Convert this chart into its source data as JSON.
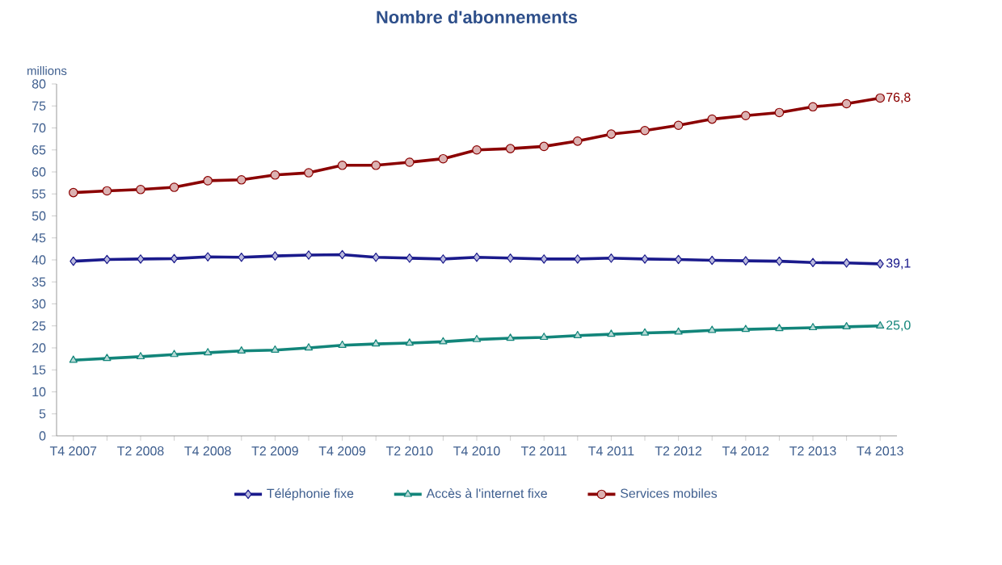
{
  "chart_data": {
    "type": "line",
    "title": "Nombre d'abonnements",
    "ylabel": "millions",
    "categories": [
      "T4 2007",
      null,
      "T2 2008",
      null,
      "T4 2008",
      null,
      "T2 2009",
      null,
      "T4 2009",
      null,
      "T2 2010",
      null,
      "T4 2010",
      null,
      "T2 2011",
      null,
      "T4 2011",
      null,
      "T2 2012",
      null,
      "T4 2012",
      null,
      "T2 2013",
      null,
      "T4 2013"
    ],
    "series": [
      {
        "name": "Téléphonie fixe",
        "color": "#1a1a8c",
        "marker": "diamond",
        "values": [
          39.7,
          40.1,
          40.2,
          40.3,
          40.7,
          40.6,
          40.9,
          41.1,
          41.2,
          40.6,
          40.4,
          40.2,
          40.6,
          40.4,
          40.2,
          40.2,
          40.4,
          40.2,
          40.1,
          39.9,
          39.8,
          39.7,
          39.4,
          39.3,
          39.1
        ],
        "value_labels": [
          null,
          null,
          null,
          null,
          null,
          null,
          null,
          null,
          null,
          null,
          null,
          null,
          null,
          null,
          null,
          null,
          null,
          null,
          null,
          null,
          null,
          null,
          null,
          null,
          "39,1"
        ]
      },
      {
        "name": "Accès à l'internet fixe",
        "color": "#12857a",
        "marker": "triangle",
        "values": [
          17.2,
          17.6,
          18.0,
          18.5,
          18.9,
          19.3,
          19.5,
          20.0,
          20.6,
          20.9,
          21.1,
          21.4,
          21.9,
          22.2,
          22.4,
          22.8,
          23.1,
          23.4,
          23.6,
          24.0,
          24.2,
          24.4,
          24.6,
          24.8,
          25.0
        ],
        "value_labels": [
          null,
          null,
          null,
          null,
          null,
          null,
          null,
          null,
          null,
          null,
          null,
          null,
          null,
          null,
          null,
          null,
          null,
          null,
          null,
          null,
          null,
          null,
          null,
          null,
          "25,0"
        ]
      },
      {
        "name": "Services mobiles",
        "color": "#8b0000",
        "marker": "circle",
        "values": [
          55.3,
          55.7,
          56.0,
          56.5,
          58.0,
          58.2,
          59.3,
          59.8,
          61.5,
          61.5,
          62.2,
          63.0,
          65.0,
          65.3,
          65.8,
          67.0,
          68.6,
          69.4,
          70.6,
          72.0,
          72.8,
          73.5,
          74.8,
          75.5,
          76.8
        ],
        "value_labels": [
          null,
          null,
          null,
          null,
          null,
          null,
          null,
          null,
          null,
          null,
          null,
          null,
          null,
          null,
          null,
          null,
          null,
          null,
          null,
          null,
          null,
          null,
          null,
          null,
          "76,8"
        ]
      }
    ],
    "ylim": [
      0,
      80
    ],
    "yticks": [
      0,
      5,
      10,
      15,
      20,
      25,
      30,
      35,
      40,
      45,
      50,
      55,
      60,
      65,
      70,
      75,
      80
    ],
    "grid": false,
    "legend": "bottom",
    "line_style": "solid"
  }
}
